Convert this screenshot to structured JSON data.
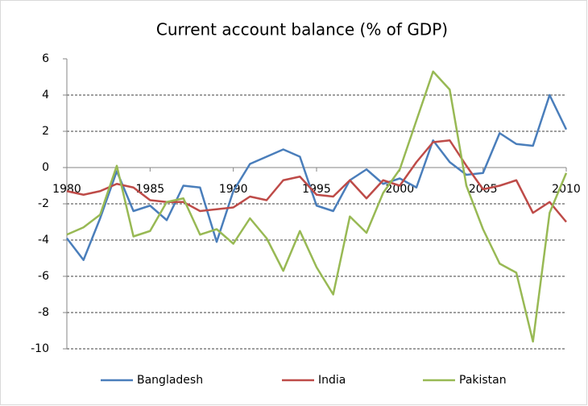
{
  "chart_data": {
    "type": "line",
    "title": "Current account balance (% of GDP)",
    "x": [
      1980,
      1981,
      1982,
      1983,
      1984,
      1985,
      1986,
      1987,
      1988,
      1989,
      1990,
      1991,
      1992,
      1993,
      1994,
      1995,
      1996,
      1997,
      1998,
      1999,
      2000,
      2001,
      2002,
      2003,
      2004,
      2005,
      2006,
      2007,
      2008,
      2009,
      2010
    ],
    "xlim": [
      1980,
      2010
    ],
    "xticks": [
      1980,
      1985,
      1990,
      1995,
      2000,
      2005,
      2010
    ],
    "ylim": [
      -10,
      6
    ],
    "yticks": [
      6,
      4,
      2,
      0,
      -2,
      -4,
      -6,
      -8,
      -10
    ],
    "grid": true,
    "legend": "bottom",
    "series": [
      {
        "name": "Bangladesh",
        "color": "#4a7ebb",
        "values": [
          -3.9,
          -5.1,
          -2.8,
          -0.2,
          -2.4,
          -2.1,
          -2.9,
          -1.0,
          -1.1,
          -4.1,
          -1.3,
          0.2,
          0.6,
          1.0,
          0.6,
          -2.1,
          -2.4,
          -0.7,
          -0.1,
          -0.9,
          -0.6,
          -1.1,
          1.5,
          0.3,
          -0.4,
          -0.3,
          1.9,
          1.3,
          1.2,
          4.0,
          2.1
        ]
      },
      {
        "name": "India",
        "color": "#be4b48",
        "values": [
          -1.3,
          -1.5,
          -1.3,
          -0.9,
          -1.1,
          -1.8,
          -1.9,
          -1.9,
          -2.4,
          -2.3,
          -2.2,
          -1.6,
          -1.8,
          -0.7,
          -0.5,
          -1.5,
          -1.6,
          -0.7,
          -1.7,
          -0.7,
          -1.0,
          0.3,
          1.4,
          1.5,
          0.1,
          -1.2,
          -1.0,
          -0.7,
          -2.5,
          -1.9,
          -3.0
        ]
      },
      {
        "name": "Pakistan",
        "color": "#98b954",
        "values": [
          -3.7,
          -3.3,
          -2.6,
          0.1,
          -3.8,
          -3.5,
          -1.9,
          -1.7,
          -3.7,
          -3.4,
          -4.2,
          -2.8,
          -3.9,
          -5.7,
          -3.5,
          -5.5,
          -7.0,
          -2.7,
          -3.6,
          -1.4,
          -0.1,
          2.6,
          5.3,
          4.3,
          -1.0,
          -3.4,
          -5.3,
          -5.8,
          -9.6,
          -2.5,
          -0.3
        ]
      }
    ]
  }
}
